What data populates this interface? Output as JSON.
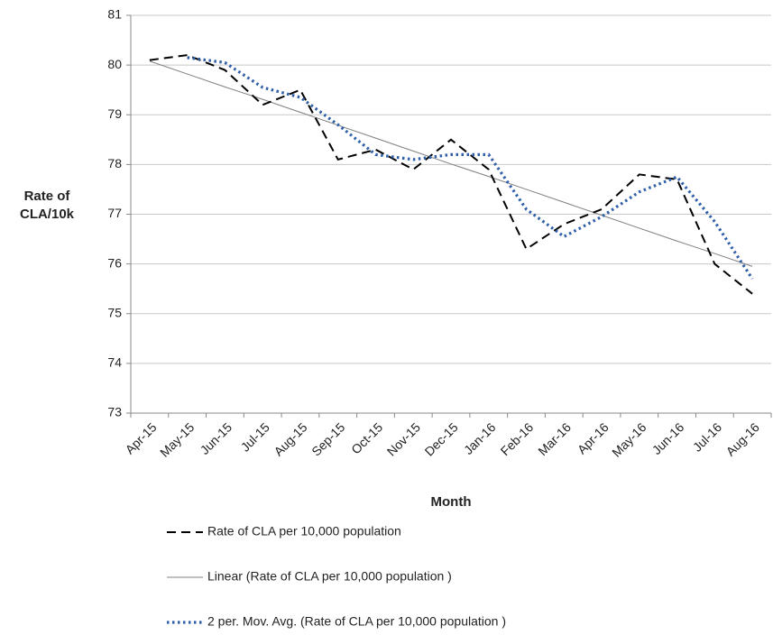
{
  "chart_data": {
    "type": "line",
    "xlabel": "Month",
    "ylabel": [
      "Rate of",
      "CLA/10k"
    ],
    "categories": [
      "Apr-15",
      "May-15",
      "Jun-15",
      "Jul-15",
      "Aug-15",
      "Sep-15",
      "Oct-15",
      "Nov-15",
      "Dec-15",
      "Jan-16",
      "Feb-16",
      "Mar-16",
      "Apr-16",
      "May-16",
      "Jun-16",
      "Jul-16",
      "Aug-16"
    ],
    "series": [
      {
        "name": "Rate of CLA per 10,000 population",
        "color": "#000000",
        "style": "dashed",
        "values": [
          80.1,
          80.2,
          79.9,
          79.2,
          79.5,
          78.1,
          78.3,
          77.9,
          78.5,
          77.9,
          76.3,
          76.8,
          77.1,
          77.8,
          77.7,
          76.0,
          75.4
        ]
      },
      {
        "name": "Linear (Rate of CLA per 10,000 population )",
        "color": "#7f7f7f",
        "style": "solid",
        "values": [
          80.08,
          79.82,
          79.56,
          79.31,
          79.05,
          78.79,
          78.53,
          78.27,
          78.01,
          77.76,
          77.5,
          77.24,
          76.98,
          76.72,
          76.46,
          76.21,
          75.95
        ]
      },
      {
        "name": "2 per. Mov. Avg. (Rate of CLA per 10,000 population )",
        "color": "#2e5fa8",
        "style": "dotted",
        "values": [
          null,
          80.15,
          80.05,
          79.55,
          79.35,
          78.8,
          78.2,
          78.1,
          78.2,
          78.2,
          77.1,
          76.55,
          76.95,
          77.45,
          77.75,
          76.85,
          75.7
        ]
      }
    ],
    "ylim": [
      73,
      81
    ],
    "yticks": [
      73,
      74,
      75,
      76,
      77,
      78,
      79,
      80,
      81
    ],
    "grid": true
  }
}
